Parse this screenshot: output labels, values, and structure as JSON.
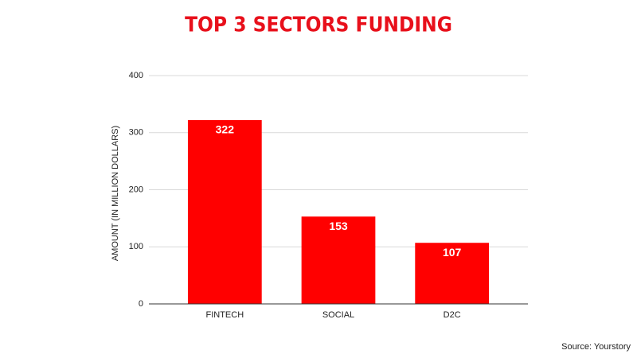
{
  "chart_data": {
    "type": "bar",
    "title": "TOP 3 SECTORS FUNDING",
    "y_label": "AMOUNT (IN MILLION DOLLARS)",
    "categories": [
      "FINTECH",
      "SOCIAL",
      "D2C"
    ],
    "values": [
      322,
      153,
      107
    ],
    "color": "#ff0000",
    "ylim": [
      0,
      400
    ],
    "yticks": [
      0,
      100,
      200,
      300,
      400
    ],
    "grid": true,
    "source": "Source: Yourstory"
  }
}
